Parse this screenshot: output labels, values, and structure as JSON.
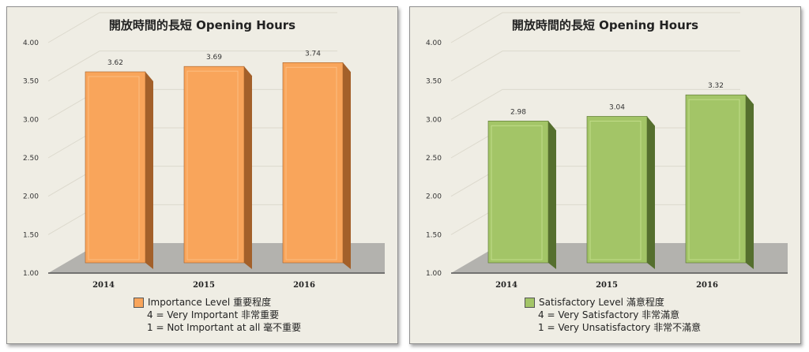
{
  "chart_data": [
    {
      "type": "bar",
      "title": "開放時間的長短 Opening Hours",
      "categories": [
        "2014",
        "2015",
        "2016"
      ],
      "series": [
        {
          "name": "Importance Level 重要程度",
          "values": [
            3.62,
            3.69,
            3.74
          ]
        }
      ],
      "data_labels": [
        "3.62",
        "3.69",
        "3.74"
      ],
      "ylim": [
        1.0,
        4.0
      ],
      "yticks": [
        "1.00",
        "1.50",
        "2.00",
        "2.50",
        "3.00",
        "3.50",
        "4.00"
      ],
      "grid": true,
      "legend_position": "bottom-center",
      "legend_notes": [
        "4 = Very Important 非常重要",
        "1 = Not  Important at all 毫不重要"
      ],
      "colors": {
        "bar": "#f9a55b",
        "bar_side": "#a3602a",
        "bar_top": "#fcc086",
        "floor": "#b3b2ae"
      }
    },
    {
      "type": "bar",
      "title": "開放時間的長短 Opening Hours",
      "categories": [
        "2014",
        "2015",
        "2016"
      ],
      "series": [
        {
          "name": "Satisfactory Level 滿意程度",
          "values": [
            2.98,
            3.04,
            3.32
          ]
        }
      ],
      "data_labels": [
        "2.98",
        "3.04",
        "3.32"
      ],
      "ylim": [
        1.0,
        4.0
      ],
      "yticks": [
        "1.00",
        "1.50",
        "2.00",
        "2.50",
        "3.00",
        "3.50",
        "4.00"
      ],
      "grid": true,
      "legend_position": "bottom-center",
      "legend_notes": [
        "4 = Very Satisfactory 非常滿意",
        "1 = Very Unsatisfactory 非常不滿意"
      ],
      "colors": {
        "bar": "#a3c567",
        "bar_side": "#556f2e",
        "bar_top": "#c5df8d",
        "floor": "#b3b2ae"
      }
    }
  ]
}
